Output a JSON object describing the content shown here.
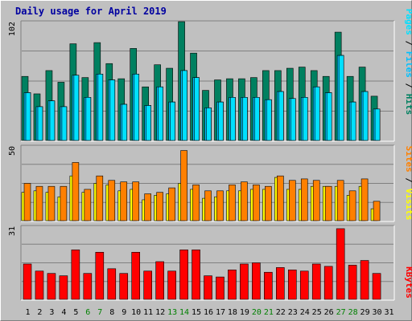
{
  "title": "Daily usage for April 2019",
  "colors": {
    "background": "#c0c0c0",
    "plot_bg": "#c0c0c0",
    "hits": "#008060",
    "files": "#00c0ff",
    "pages": "#00e0ff",
    "visits": "#ffff00",
    "sites": "#ff8000",
    "kbytes": "#ff0000",
    "weekend": "#008000",
    "weekday": "#000000",
    "title": "#0000a0"
  },
  "weekend_days": [
    6,
    7,
    13,
    14,
    20,
    21,
    27,
    28
  ],
  "chart_data": [
    {
      "type": "bar",
      "panel": "hits-files-pages",
      "legend": "right",
      "y_max_label": "102",
      "ylim": [
        0,
        102
      ],
      "categories": [
        "1",
        "2",
        "3",
        "4",
        "5",
        "6",
        "7",
        "8",
        "9",
        "10",
        "11",
        "12",
        "13",
        "14",
        "15",
        "16",
        "17",
        "18",
        "19",
        "20",
        "21",
        "22",
        "23",
        "24",
        "25",
        "26",
        "27",
        "28",
        "29",
        "30",
        "31"
      ],
      "series": [
        {
          "name": "Hits",
          "values": [
            55,
            40,
            60,
            50,
            83,
            54,
            84,
            66,
            53,
            79,
            46,
            65,
            62,
            102,
            75,
            43,
            52,
            53,
            53,
            54,
            60,
            60,
            62,
            63,
            60,
            55,
            93,
            55,
            63,
            38,
            null
          ]
        },
        {
          "name": "Files",
          "values": [
            41,
            29,
            34,
            29,
            56,
            37,
            57,
            52,
            31,
            57,
            30,
            46,
            33,
            60,
            54,
            28,
            33,
            37,
            37,
            37,
            35,
            42,
            36,
            37,
            46,
            41,
            73,
            33,
            42,
            27,
            null
          ]
        },
        {
          "name": "Pages",
          "values": [
            41,
            29,
            34,
            29,
            56,
            37,
            57,
            52,
            31,
            57,
            30,
            46,
            33,
            60,
            54,
            28,
            33,
            37,
            37,
            37,
            35,
            42,
            36,
            37,
            46,
            41,
            73,
            33,
            42,
            27,
            null
          ]
        }
      ]
    },
    {
      "type": "bar",
      "panel": "sites-visits",
      "legend": "right",
      "y_max_label": "50",
      "ylim": [
        0,
        50
      ],
      "categories": [
        "1",
        "2",
        "3",
        "4",
        "5",
        "6",
        "7",
        "8",
        "9",
        "10",
        "11",
        "12",
        "13",
        "14",
        "15",
        "16",
        "17",
        "18",
        "19",
        "20",
        "21",
        "22",
        "23",
        "24",
        "25",
        "26",
        "27",
        "28",
        "29",
        "30",
        "31"
      ],
      "series": [
        {
          "name": "Visits",
          "values": [
            19,
            20,
            19,
            16,
            30,
            19,
            25,
            24,
            20,
            21,
            14,
            17,
            18,
            25,
            21,
            15,
            16,
            20,
            20,
            21,
            21,
            29,
            21,
            21,
            23,
            23,
            23,
            17,
            23,
            8,
            null
          ]
        },
        {
          "name": "Sites",
          "values": [
            25,
            23,
            23,
            23,
            39,
            21,
            30,
            27,
            26,
            26,
            18,
            19,
            22,
            47,
            24,
            20,
            20,
            24,
            26,
            24,
            23,
            30,
            27,
            28,
            27,
            23,
            27,
            20,
            28,
            13,
            null
          ]
        }
      ]
    },
    {
      "type": "bar",
      "panel": "kbytes",
      "legend": "right",
      "y_max_label": "31",
      "ylim": [
        0,
        31
      ],
      "categories": [
        "1",
        "2",
        "3",
        "4",
        "5",
        "6",
        "7",
        "8",
        "9",
        "10",
        "11",
        "12",
        "13",
        "14",
        "15",
        "16",
        "17",
        "18",
        "19",
        "20",
        "21",
        "22",
        "23",
        "24",
        "25",
        "26",
        "27",
        "28",
        "29",
        "30",
        "31"
      ],
      "series": [
        {
          "name": "KBytes",
          "values": [
            15,
            12,
            11,
            10,
            21,
            11,
            20,
            13,
            11,
            20,
            12,
            16,
            12,
            21,
            21,
            10,
            9.5,
            12.5,
            15,
            15.5,
            11.5,
            13.5,
            12.5,
            12,
            15,
            14,
            30,
            14.5,
            16.5,
            11,
            null
          ]
        }
      ]
    }
  ]
}
